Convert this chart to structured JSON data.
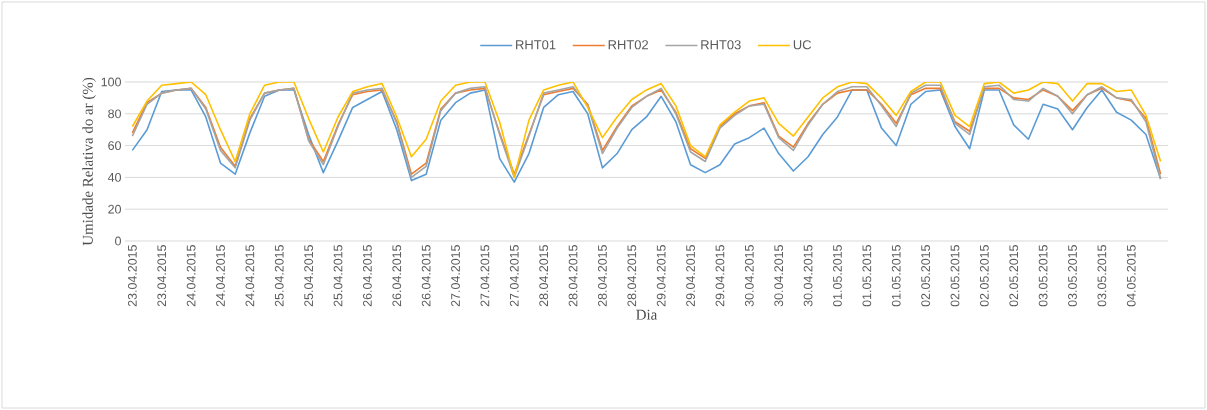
{
  "chart_data": {
    "type": "line",
    "xlabel": "Dia",
    "ylabel": "Umidade Relativa do ar (%)",
    "legend": "top",
    "grid": "y",
    "ylim": [
      0,
      100
    ],
    "yticks": [
      0,
      20,
      40,
      60,
      80,
      100
    ],
    "categories": [
      "23.04.2015",
      null,
      "23.04.2015",
      null,
      "24.04.2015",
      null,
      "24.04.2015",
      null,
      "24.04.2015",
      null,
      "25.04.2015",
      null,
      "25.04.2015",
      null,
      "25.04.2015",
      null,
      "26.04.2015",
      null,
      "26.04.2015",
      null,
      "26.04.2015",
      null,
      "27.04.2015",
      null,
      "27.04.2015",
      null,
      "27.04.2015",
      null,
      "28.04.2015",
      null,
      "28.04.2015",
      null,
      "28.04.2015",
      null,
      "28.04.2015",
      null,
      "29.04.2015",
      null,
      "29.04.2015",
      null,
      "29.04.2015",
      null,
      "30.04.2015",
      null,
      "30.04.2015",
      null,
      "30.04.2015",
      null,
      "01.05.2015",
      null,
      "01.05.2015",
      null,
      "01.05.2015",
      null,
      "02.05.2015",
      null,
      "02.05.2015",
      null,
      "02.05.2015",
      null,
      "02.05.2015",
      null,
      "03.05.2015",
      null,
      "03.05.2015",
      null,
      "03.05.2015",
      null,
      "04.05.2015",
      null,
      null
    ],
    "series": [
      {
        "name": "RHT01",
        "color": "#5b9bd5",
        "values": [
          57,
          70,
          94,
          95,
          95,
          78,
          49,
          42,
          68,
          91,
          95,
          95,
          67,
          43,
          63,
          84,
          89,
          94,
          70,
          38,
          42,
          76,
          87,
          93,
          95,
          52,
          37,
          55,
          84,
          92,
          94,
          80,
          46,
          55,
          70,
          78,
          91,
          75,
          48,
          43,
          48,
          61,
          65,
          71,
          55,
          44,
          53,
          67,
          78,
          95,
          95,
          71,
          60,
          86,
          94,
          95,
          72,
          58,
          95,
          95,
          73,
          64,
          86,
          83,
          70,
          84,
          95,
          81,
          76,
          67,
          39
        ]
      },
      {
        "name": "RHT02",
        "color": "#ed7d31",
        "values": [
          68,
          87,
          93,
          95,
          96,
          84,
          59,
          47,
          77,
          93,
          95,
          96,
          64,
          50,
          73,
          92,
          94,
          95,
          75,
          42,
          49,
          83,
          93,
          95,
          96,
          68,
          42,
          67,
          92,
          94,
          96,
          86,
          57,
          72,
          85,
          91,
          95,
          81,
          58,
          52,
          72,
          80,
          85,
          87,
          66,
          59,
          74,
          86,
          93,
          95,
          95,
          86,
          74,
          92,
          96,
          96,
          75,
          69,
          96,
          96,
          90,
          89,
          95,
          91,
          82,
          92,
          96,
          90,
          88,
          77,
          42
        ]
      },
      {
        "name": "RHT03",
        "color": "#a5a5a5",
        "values": [
          66,
          86,
          93,
          95,
          96,
          83,
          57,
          46,
          76,
          93,
          95,
          96,
          63,
          48,
          72,
          93,
          95,
          96,
          74,
          40,
          47,
          82,
          93,
          96,
          97,
          67,
          40,
          66,
          93,
          95,
          97,
          85,
          55,
          71,
          84,
          91,
          96,
          80,
          56,
          50,
          71,
          79,
          85,
          86,
          65,
          57,
          73,
          86,
          94,
          97,
          97,
          85,
          72,
          93,
          98,
          98,
          74,
          67,
          97,
          98,
          89,
          88,
          96,
          91,
          80,
          92,
          97,
          90,
          89,
          75,
          39
        ]
      },
      {
        "name": "UC",
        "color": "#ffc000",
        "values": [
          72,
          88,
          98,
          99,
          100,
          92,
          70,
          50,
          80,
          98,
          100,
          100,
          77,
          56,
          78,
          94,
          97,
          99,
          78,
          53,
          64,
          88,
          98,
          100,
          100,
          75,
          40,
          76,
          95,
          98,
          100,
          84,
          65,
          78,
          89,
          95,
          99,
          85,
          60,
          53,
          73,
          81,
          88,
          90,
          74,
          66,
          78,
          90,
          97,
          100,
          99,
          90,
          79,
          94,
          100,
          100,
          79,
          72,
          99,
          100,
          93,
          95,
          100,
          99,
          88,
          99,
          99,
          94,
          95,
          79,
          50
        ]
      }
    ]
  }
}
